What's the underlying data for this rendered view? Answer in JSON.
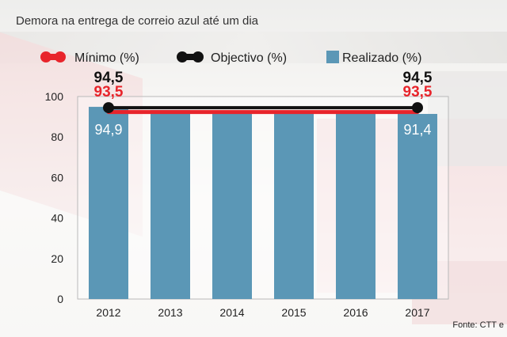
{
  "chart_data": {
    "type": "bar",
    "title": "Demora na entrega de correio azul até um dia",
    "source": "Fonte: CTT e",
    "categories": [
      "2012",
      "2013",
      "2014",
      "2015",
      "2016",
      "2017"
    ],
    "ylim": [
      0,
      100
    ],
    "yticks": [
      0,
      20,
      40,
      60,
      80,
      100
    ],
    "grid": false,
    "legend_position": "top",
    "series": [
      {
        "name": "Mínimo (%)",
        "kind": "line",
        "color": "#e8242b",
        "values": [
          93.5,
          93.5,
          93.5,
          93.5,
          93.5,
          93.5
        ]
      },
      {
        "name": "Objectivo (%)",
        "kind": "line",
        "color": "#111111",
        "values": [
          94.5,
          94.5,
          94.5,
          94.5,
          94.5,
          94.5
        ]
      },
      {
        "name": "Realizado (%)",
        "kind": "bar",
        "color": "#5b97b6",
        "values": [
          94.9,
          93.3,
          93.0,
          93.0,
          93.0,
          91.4
        ]
      }
    ],
    "annotations": {
      "start_objective": "94,5",
      "start_minimum": "93,5",
      "end_objective": "94,5",
      "end_minimum": "93,5",
      "first_bar_label": "94,9",
      "last_bar_label": "91,4"
    }
  }
}
